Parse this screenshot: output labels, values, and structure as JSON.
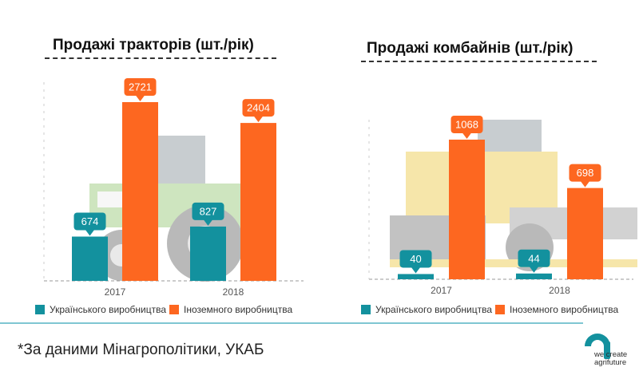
{
  "colors": {
    "ukrainian": "#13919e",
    "foreign": "#fd6720",
    "axis": "#999999"
  },
  "chart_data": [
    {
      "type": "bar",
      "title": "Продажі тракторів (шт./рік)",
      "categories": [
        "2017",
        "2018"
      ],
      "series": [
        {
          "name": "Українського виробництва",
          "values": [
            674,
            827
          ]
        },
        {
          "name": "Іноземного виробництва",
          "values": [
            2721,
            2404
          ]
        }
      ],
      "ylim": [
        0,
        2721
      ],
      "legend_position": "bottom",
      "grid": false
    },
    {
      "type": "bar",
      "title": "Продажі комбайнів (шт./рік)",
      "categories": [
        "2017",
        "2018"
      ],
      "series": [
        {
          "name": "Українського виробництва",
          "values": [
            40,
            44
          ]
        },
        {
          "name": "Іноземного виробництва",
          "values": [
            1068,
            698
          ]
        }
      ],
      "ylim": [
        0,
        1068
      ],
      "legend_position": "bottom",
      "grid": false
    }
  ],
  "footnote": "*За даними Мінагрополітики, УКАБ",
  "logo": {
    "icon": "company-logo-icon",
    "text": "we create\nagrifuture"
  }
}
